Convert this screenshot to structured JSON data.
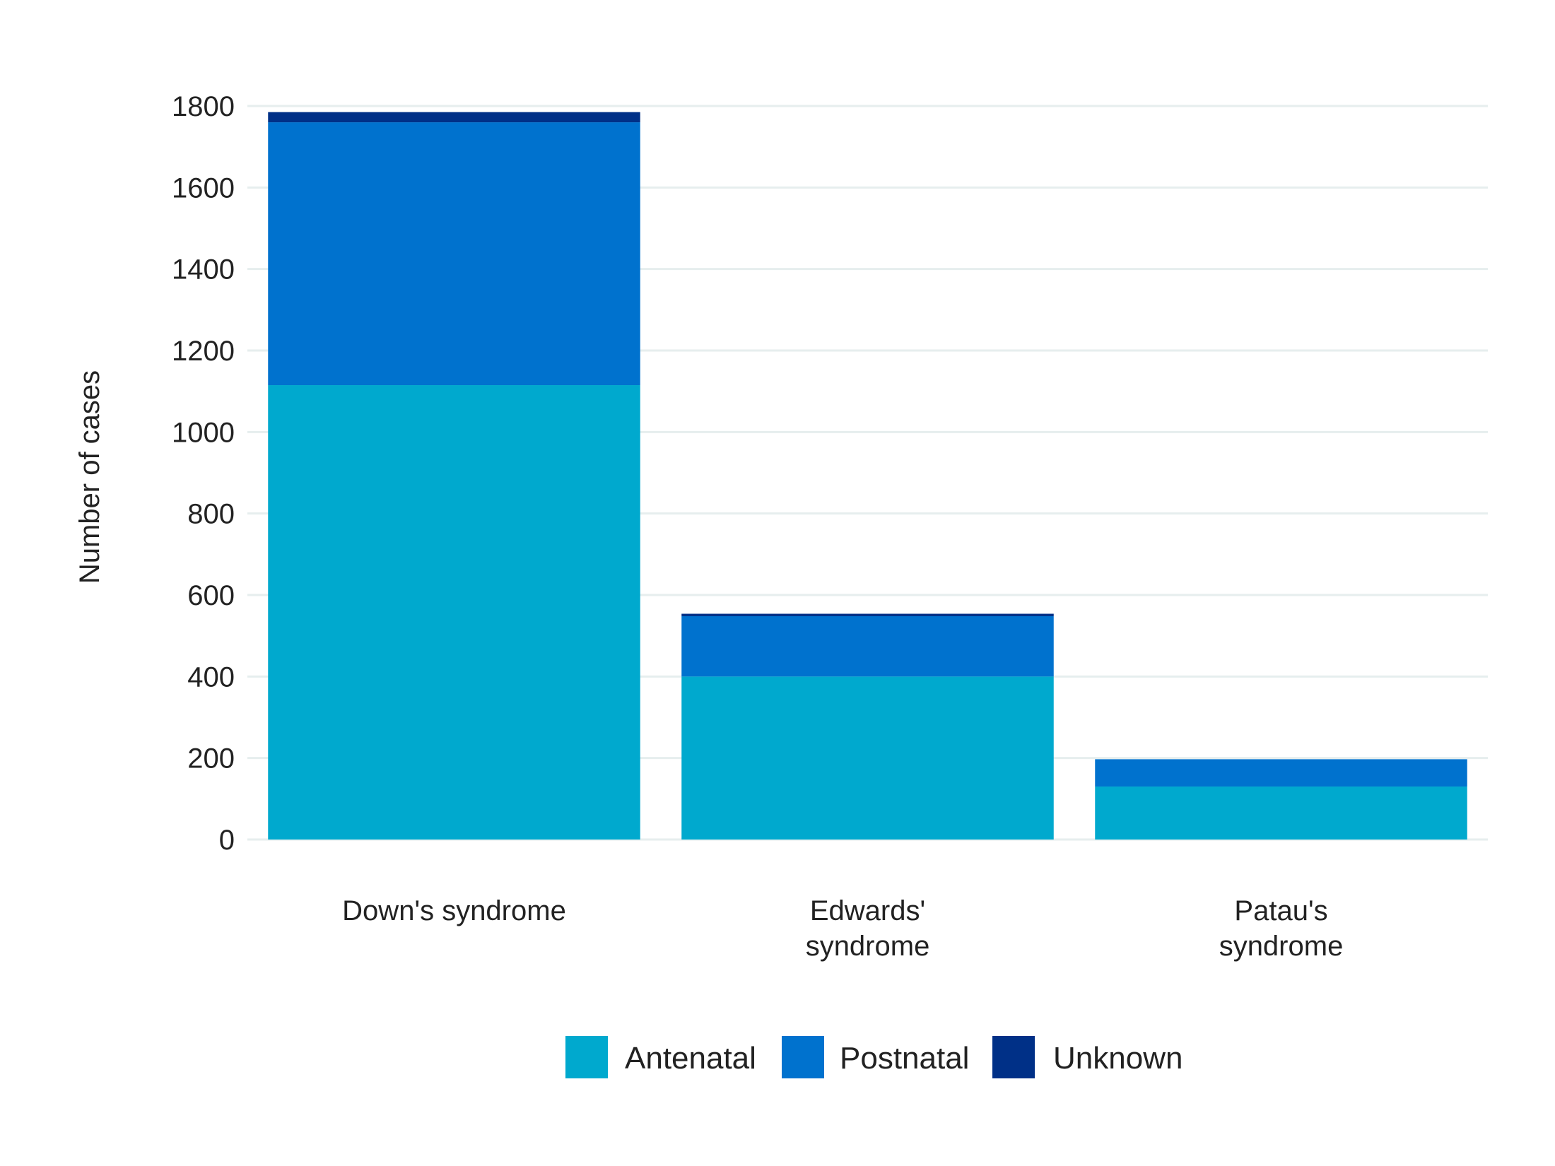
{
  "chart_data": {
    "type": "bar",
    "stacked": true,
    "categories": [
      [
        "Down's syndrome"
      ],
      [
        "Edwards'",
        "syndrome"
      ],
      [
        "Patau's",
        "syndrome"
      ]
    ],
    "series": [
      {
        "name": "Antenatal",
        "color": "#00a9ce",
        "values": [
          1115,
          400,
          130
        ]
      },
      {
        "name": "Postnatal",
        "color": "#0072ce",
        "values": [
          645,
          148,
          67
        ]
      },
      {
        "name": "Unknown",
        "color": "#003087",
        "values": [
          25,
          6,
          0
        ]
      }
    ],
    "ylabel": "Number of cases",
    "xlabel": "",
    "ylim": [
      0,
      1800
    ],
    "yticks": [
      0,
      200,
      400,
      600,
      800,
      1000,
      1200,
      1400,
      1600,
      1800
    ],
    "grid": true,
    "legend": "bottom"
  }
}
